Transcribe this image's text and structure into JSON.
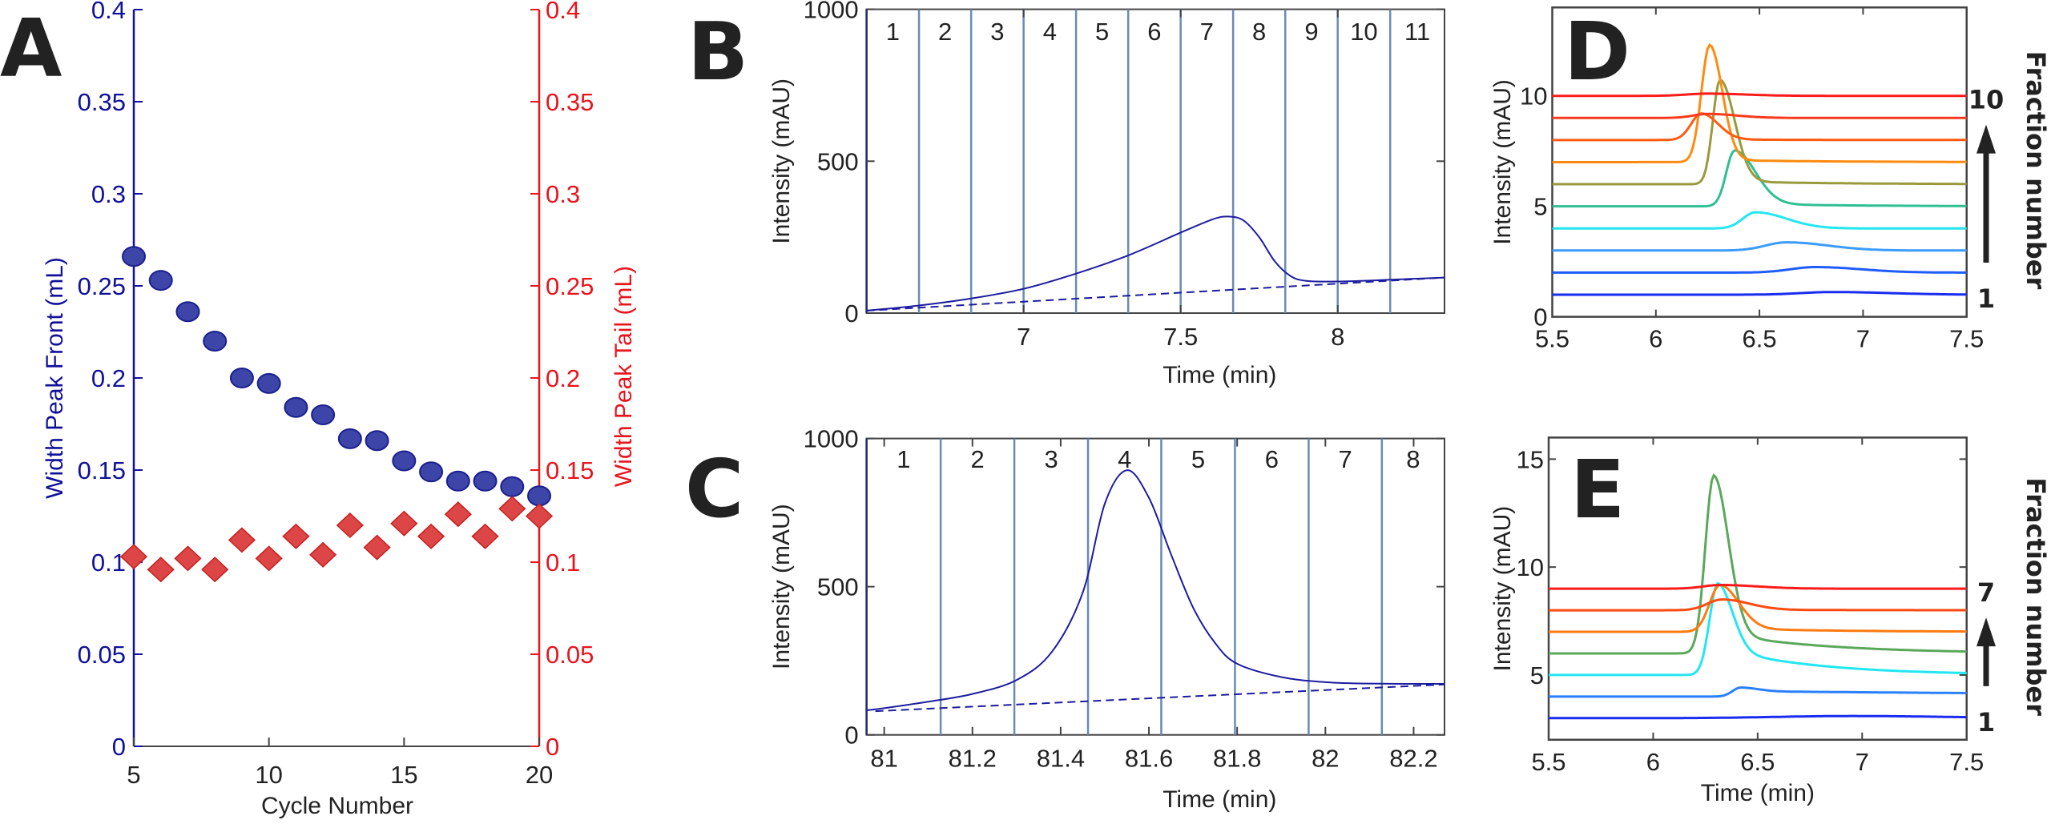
{
  "panel_labels": [
    "A",
    "B",
    "C",
    "D",
    "E"
  ],
  "chart_data": [
    {
      "panel": "A",
      "type": "scatter",
      "xlabel": "Cycle Number",
      "ylabel": "Width Peak Front (mL)",
      "y2label": "Width Peak Tail (mL)",
      "xlim": [
        5,
        20
      ],
      "ylim": [
        0,
        0.4
      ],
      "y2lim": [
        0,
        0.4
      ],
      "xticks": [
        "5",
        "10",
        "15",
        "20"
      ],
      "yticks": [
        "0",
        "0.05",
        "0.1",
        "0.15",
        "0.2",
        "0.25",
        "0.3",
        "0.35",
        "0.4"
      ],
      "y2ticks": [
        "0",
        "0.05",
        "0.1",
        "0.15",
        "0.2",
        "0.25",
        "0.3",
        "0.35",
        "0.4"
      ],
      "grid": false,
      "colors": {
        "left_axis": "#10109a",
        "right_axis": "#e8141e"
      },
      "x": [
        5,
        6,
        7,
        8,
        9,
        10,
        11,
        12,
        13,
        14,
        15,
        16,
        17,
        18,
        19,
        20
      ],
      "series": [
        {
          "axis": "left",
          "marker": "circle",
          "color": "#3d46a8",
          "edge": "#1a1f8f",
          "values": [
            0.266,
            0.253,
            0.236,
            0.22,
            0.2,
            0.197,
            0.184,
            0.18,
            0.167,
            0.166,
            0.155,
            0.149,
            0.144,
            0.144,
            0.141,
            0.136
          ]
        },
        {
          "axis": "right",
          "marker": "diamond",
          "color": "#dc4646",
          "edge": "#c81e1e",
          "values": [
            0.103,
            0.096,
            0.102,
            0.096,
            0.112,
            0.102,
            0.114,
            0.104,
            0.12,
            0.108,
            0.121,
            0.114,
            0.126,
            0.114,
            0.129,
            0.125
          ]
        }
      ]
    },
    {
      "panel": "B",
      "type": "line",
      "xlabel": "Time (min)",
      "ylabel": "Intensity (mAU)",
      "xlim": [
        6.5,
        8.34
      ],
      "ylim": [
        0,
        1000
      ],
      "xticks": [
        "7",
        "7.5",
        "8"
      ],
      "yticks": [
        "0",
        "500",
        "1000"
      ],
      "grid": false,
      "colors": {
        "trace": "#1c1ca0",
        "fraction_lines": "#6a8bb5"
      },
      "fraction_boundaries": [
        6.667,
        6.833,
        7.0,
        7.167,
        7.333,
        7.5,
        7.667,
        7.833,
        8.0,
        8.167
      ],
      "fraction_labels": [
        "1",
        "2",
        "3",
        "4",
        "5",
        "6",
        "7",
        "8",
        "9",
        "10",
        "11"
      ],
      "series": [
        {
          "style": "solid",
          "x": [
            6.5,
            6.667,
            6.833,
            7.0,
            7.167,
            7.333,
            7.5,
            7.6,
            7.65,
            7.7,
            7.75,
            7.8,
            7.85,
            7.9,
            8.0,
            8.17,
            8.34
          ],
          "y": [
            8,
            25,
            48,
            80,
            130,
            190,
            265,
            308,
            318,
            305,
            250,
            170,
            122,
            106,
            104,
            110,
            117
          ]
        },
        {
          "style": "dashed",
          "x": [
            6.5,
            8.34
          ],
          "y": [
            8,
            117
          ]
        }
      ]
    },
    {
      "panel": "C",
      "type": "line",
      "xlabel": "Time (min)",
      "ylabel": "Intensity (mAU)",
      "xlim": [
        80.96,
        82.27
      ],
      "ylim": [
        0,
        1000
      ],
      "xticks": [
        "81",
        "81.2",
        "81.4",
        "81.6",
        "81.8",
        "82",
        "82.2"
      ],
      "yticks": [
        "0",
        "500",
        "1000"
      ],
      "grid": false,
      "colors": {
        "trace": "#1c1ca0",
        "fraction_lines": "#6a8bb5"
      },
      "fraction_boundaries": [
        81.128,
        81.295,
        81.462,
        81.628,
        81.795,
        81.962,
        82.128
      ],
      "fraction_labels": [
        "1",
        "2",
        "3",
        "4",
        "5",
        "6",
        "7",
        "8"
      ],
      "series": [
        {
          "style": "solid",
          "x": [
            80.96,
            81.0,
            81.1,
            81.2,
            81.3,
            81.38,
            81.45,
            81.5,
            81.55,
            81.6,
            81.65,
            81.7,
            81.75,
            81.8,
            81.9,
            82.0,
            82.1,
            82.27
          ],
          "y": [
            83,
            90,
            112,
            138,
            185,
            280,
            480,
            780,
            893,
            800,
            610,
            430,
            310,
            240,
            195,
            178,
            173,
            172
          ]
        },
        {
          "style": "dashed",
          "x": [
            80.98,
            82.27
          ],
          "y": [
            80,
            170
          ]
        }
      ]
    },
    {
      "panel": "D",
      "type": "line",
      "xlabel": "",
      "ylabel": "Intensity (mAU)",
      "xlim": [
        5.5,
        7.5
      ],
      "ylim": [
        0,
        14
      ],
      "xticks": [
        "5.5",
        "6",
        "6.5",
        "7",
        "7.5"
      ],
      "yticks": [
        "0",
        "5",
        "10"
      ],
      "grid": false,
      "side_label": "Fraction number",
      "side_ticks": [
        "1",
        "10"
      ],
      "traces": [
        {
          "fraction": 1,
          "baseline": 1,
          "peak_time": 6.85,
          "peak_height": 0.12,
          "color": "#1a2cf0"
        },
        {
          "fraction": 2,
          "baseline": 2,
          "peak_time": 6.77,
          "peak_height": 0.25,
          "color": "#1f5cff"
        },
        {
          "fraction": 3,
          "baseline": 3,
          "peak_time": 6.63,
          "peak_height": 0.37,
          "color": "#3a9cff"
        },
        {
          "fraction": 4,
          "baseline": 4,
          "peak_time": 6.48,
          "peak_height": 0.73,
          "color": "#22e6f0"
        },
        {
          "fraction": 5,
          "baseline": 5,
          "peak_time": 6.38,
          "peak_height": 2.53,
          "color": "#2fbf93"
        },
        {
          "fraction": 6,
          "baseline": 6,
          "peak_time": 6.31,
          "peak_height": 4.72,
          "color": "#9a9a3c"
        },
        {
          "fraction": 7,
          "baseline": 7,
          "peak_time": 6.26,
          "peak_height": 5.3,
          "color": "#ff8a10"
        },
        {
          "fraction": 8,
          "baseline": 8,
          "peak_time": 6.22,
          "peak_height": 1.2,
          "color": "#ff5a10"
        },
        {
          "fraction": 9,
          "baseline": 9,
          "peak_time": 6.25,
          "peak_height": 0.18,
          "color": "#ff3a1a"
        },
        {
          "fraction": 10,
          "baseline": 10,
          "peak_time": 6.25,
          "peak_height": 0.1,
          "color": "#ff1a1a"
        }
      ]
    },
    {
      "panel": "E",
      "type": "line",
      "xlabel": "Time (min)",
      "ylabel": "Intensity (mAU)",
      "xlim": [
        5.5,
        7.5
      ],
      "ylim": [
        2,
        16
      ],
      "xticks": [
        "5.5",
        "6",
        "6.5",
        "7",
        "7.5"
      ],
      "yticks": [
        "5",
        "10",
        "15"
      ],
      "grid": false,
      "side_label": "Fraction number",
      "side_ticks": [
        "1",
        "7"
      ],
      "traces": [
        {
          "fraction": 1,
          "baseline": 3,
          "peak_time": 6.95,
          "peak_height": 0.1,
          "color": "#1a2cf0"
        },
        {
          "fraction": 2,
          "baseline": 4,
          "peak_time": 6.42,
          "peak_height": 0.42,
          "color": "#2a80ff"
        },
        {
          "fraction": 3,
          "baseline": 5,
          "peak_time": 6.31,
          "peak_height": 4.25,
          "color": "#22e6f0"
        },
        {
          "fraction": 4,
          "baseline": 6,
          "peak_time": 6.29,
          "peak_height": 8.25,
          "color": "#5aa85a"
        },
        {
          "fraction": 5,
          "baseline": 7,
          "peak_time": 6.32,
          "peak_height": 2.17,
          "color": "#ff7a10"
        },
        {
          "fraction": 6,
          "baseline": 8,
          "peak_time": 6.33,
          "peak_height": 0.5,
          "color": "#ff4a10"
        },
        {
          "fraction": 7,
          "baseline": 9,
          "peak_time": 6.32,
          "peak_height": 0.17,
          "color": "#ff1a1a"
        }
      ]
    }
  ]
}
